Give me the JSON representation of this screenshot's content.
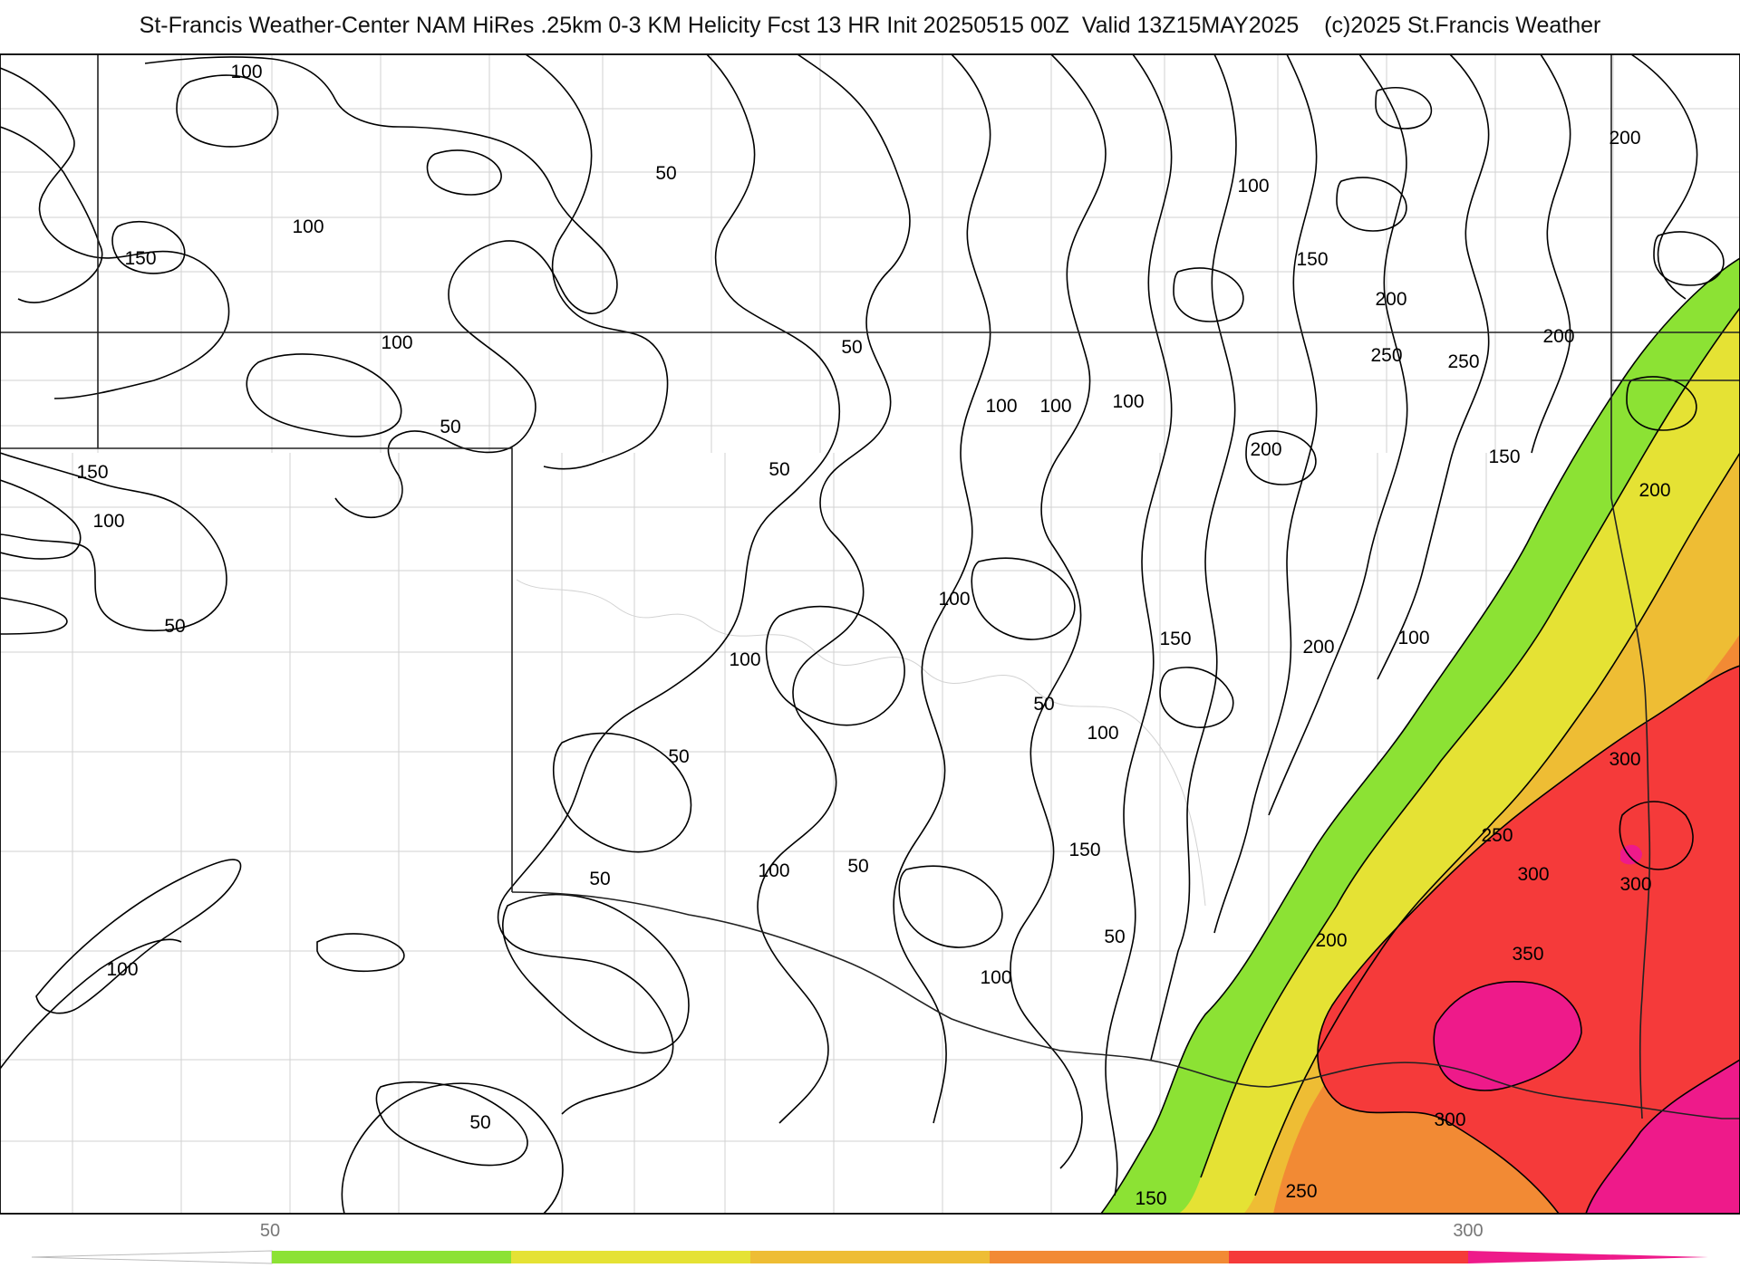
{
  "header": {
    "title": "St-Francis Weather-Center NAM HiRes .25km 0-3 KM Helicity Fcst 13 HR Init 20250515 00Z  Valid 13Z15MAY2025",
    "copyright": "(c)2025 St.Francis Weather"
  },
  "colorbar": {
    "tick_labels": [
      "50",
      "300"
    ],
    "colors": [
      "#ffffff",
      "#8ce234",
      "#e5e234",
      "#eebd34",
      "#f28a34",
      "#f53a3a",
      "#ee1a8a"
    ]
  },
  "contour_labels": [
    {
      "text": "100"
    },
    {
      "text": "50"
    },
    {
      "text": "100"
    },
    {
      "text": "150"
    },
    {
      "text": "100"
    },
    {
      "text": "50"
    },
    {
      "text": "150"
    },
    {
      "text": "100"
    },
    {
      "text": "50"
    },
    {
      "text": "50"
    },
    {
      "text": "50"
    },
    {
      "text": "100"
    },
    {
      "text": "100"
    },
    {
      "text": "100"
    },
    {
      "text": "100"
    },
    {
      "text": "150"
    },
    {
      "text": "200"
    },
    {
      "text": "200"
    },
    {
      "text": "250"
    },
    {
      "text": "250"
    },
    {
      "text": "200"
    },
    {
      "text": "200"
    },
    {
      "text": "150"
    },
    {
      "text": "200"
    },
    {
      "text": "100"
    },
    {
      "text": "100"
    },
    {
      "text": "50"
    },
    {
      "text": "150"
    },
    {
      "text": "200"
    },
    {
      "text": "100"
    },
    {
      "text": "100"
    },
    {
      "text": "50"
    },
    {
      "text": "50"
    },
    {
      "text": "100"
    },
    {
      "text": "50"
    },
    {
      "text": "150"
    },
    {
      "text": "50"
    },
    {
      "text": "100"
    },
    {
      "text": "200"
    },
    {
      "text": "300"
    },
    {
      "text": "250"
    },
    {
      "text": "300"
    },
    {
      "text": "300"
    },
    {
      "text": "350"
    },
    {
      "text": "300"
    },
    {
      "text": "250"
    },
    {
      "text": "150"
    },
    {
      "text": "100"
    },
    {
      "text": "50"
    }
  ]
}
